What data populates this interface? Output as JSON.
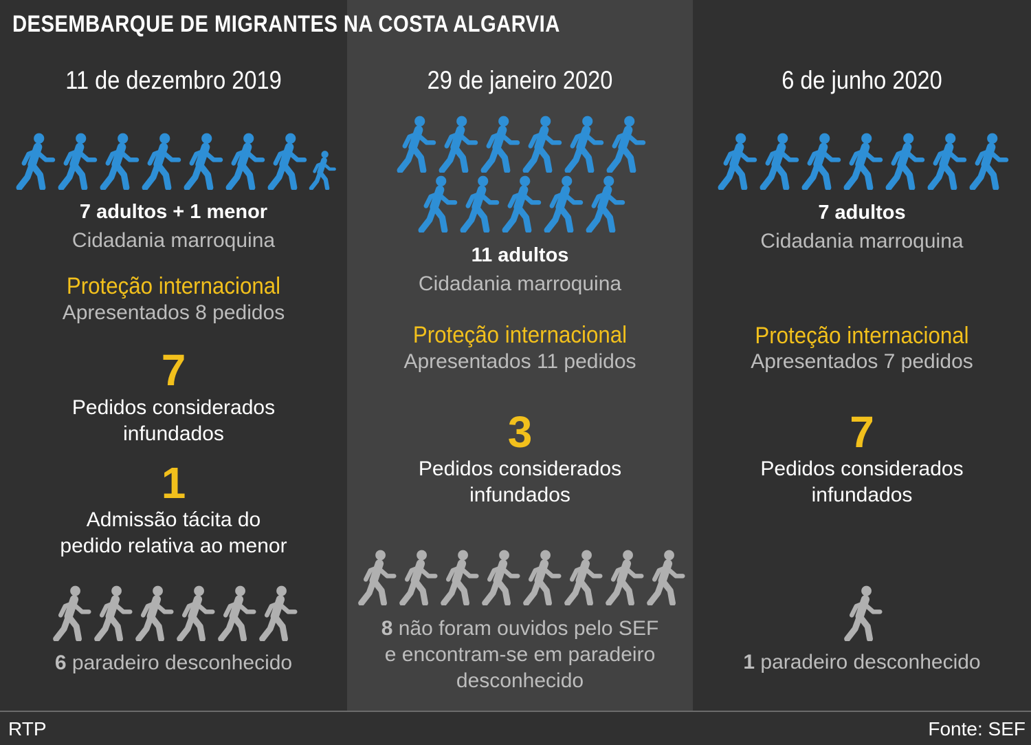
{
  "title": "DESEMBARQUE DE MIGRANTES NA COSTA ALGARVIA",
  "colors": {
    "blue": "#2e8fd6",
    "gray_icon": "#b0b0b0",
    "yellow": "#f2c01c"
  },
  "columns": [
    {
      "date": "11 de dezembro 2019",
      "people_label": "7 adultos + 1 menor",
      "citizenship": "Cidadania marroquina",
      "protection_heading": "Proteção internacional",
      "requests": "Apresentados 8 pedidos",
      "unfounded_count": "7",
      "unfounded_label_1": "Pedidos considerados",
      "unfounded_label_2": "infundados",
      "admission_count": "1",
      "admission_label_1": "Admissão tácita do",
      "admission_label_2": "pedido relativa ao menor",
      "unknown_count": "6",
      "unknown_label": "paradeiro desconhecido",
      "icons": {
        "adults": 7,
        "minors": 1,
        "unknown": 6,
        "icon_name": "walking-person-icon"
      }
    },
    {
      "date": "29 de janeiro 2020",
      "people_label": "11 adultos",
      "citizenship": "Cidadania marroquina",
      "protection_heading": "Proteção internacional",
      "requests": "Apresentados 11 pedidos",
      "unfounded_count": "3",
      "unfounded_label_1": "Pedidos considerados",
      "unfounded_label_2": "infundados",
      "unknown_count": "8",
      "unknown_label_1": "não foram ouvidos pelo SEF",
      "unknown_label_2": "e encontram-se em paradeiro",
      "unknown_label_3": "desconhecido",
      "icons": {
        "adults": 11,
        "unknown": 8,
        "icon_name": "walking-person-icon"
      }
    },
    {
      "date": "6 de junho 2020",
      "people_label": "7 adultos",
      "citizenship": "Cidadania marroquina",
      "protection_heading": "Proteção internacional",
      "requests": "Apresentados 7 pedidos",
      "unfounded_count": "7",
      "unfounded_label_1": "Pedidos considerados",
      "unfounded_label_2": "infundados",
      "unknown_count": "1",
      "unknown_label": "paradeiro desconhecido",
      "icons": {
        "adults": 7,
        "unknown": 1,
        "icon_name": "walking-person-icon"
      }
    }
  ],
  "footer": {
    "left": "RTP",
    "right": "Fonte: SEF"
  }
}
